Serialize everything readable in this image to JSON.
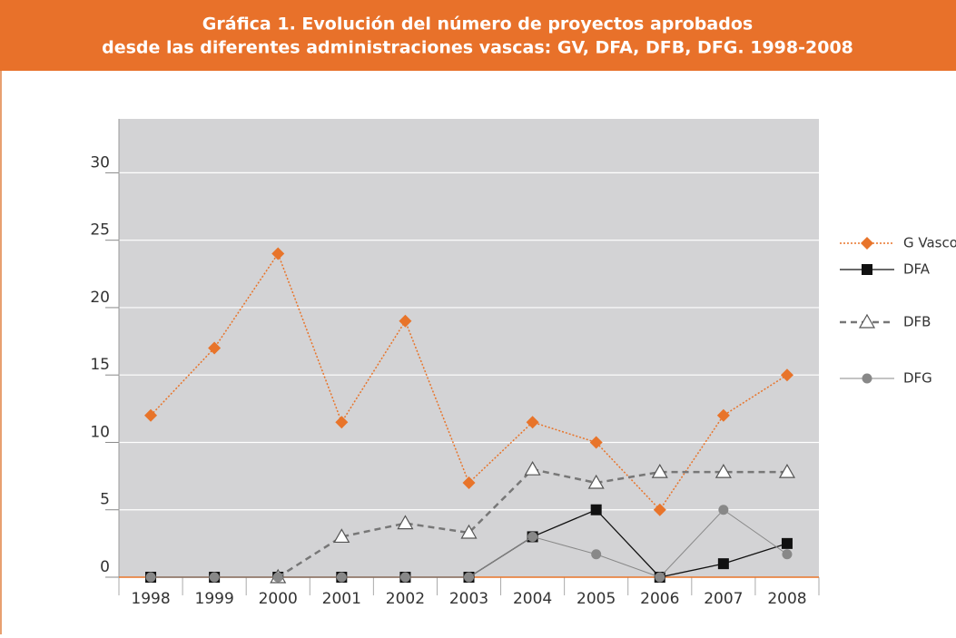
{
  "chart_data": {
    "type": "line",
    "title": [
      "Gráfica 1. Evolución del número de proyectos aprobados",
      "desde las diferentes administraciones vascas: GV, DFA, DFB, DFG. 1998-2008"
    ],
    "categories": [
      "1998",
      "1999",
      "2000",
      "2001",
      "2002",
      "2003",
      "2004",
      "2005",
      "2006",
      "2007",
      "2008"
    ],
    "series": [
      {
        "name": "G Vasco",
        "color": "#e8742a",
        "marker": "diamond",
        "line_style": "dotted",
        "values": [
          12,
          17,
          24,
          11.5,
          19,
          7,
          11.5,
          10,
          5,
          12,
          15
        ]
      },
      {
        "name": "DFA",
        "color": "#111111",
        "marker": "square",
        "line_style": "solid",
        "values": [
          0,
          0,
          0,
          0,
          0,
          0,
          3,
          5,
          0,
          1,
          2.5
        ]
      },
      {
        "name": "DFB",
        "color": "#777777",
        "marker": "triangle",
        "line_style": "dashed",
        "values": [
          null,
          null,
          0,
          3,
          4,
          3.3,
          8,
          7,
          7.8,
          7.8,
          7.8
        ]
      },
      {
        "name": "DFG",
        "color": "#888888",
        "marker": "circle",
        "line_style": "thin",
        "values": [
          0,
          0,
          0,
          0,
          0,
          0,
          3,
          1.7,
          0,
          5,
          1.7
        ]
      }
    ],
    "ylim": [
      0,
      34
    ],
    "yticks": [
      0,
      5,
      10,
      15,
      20,
      25,
      30
    ],
    "grid": true,
    "legend": "right"
  }
}
